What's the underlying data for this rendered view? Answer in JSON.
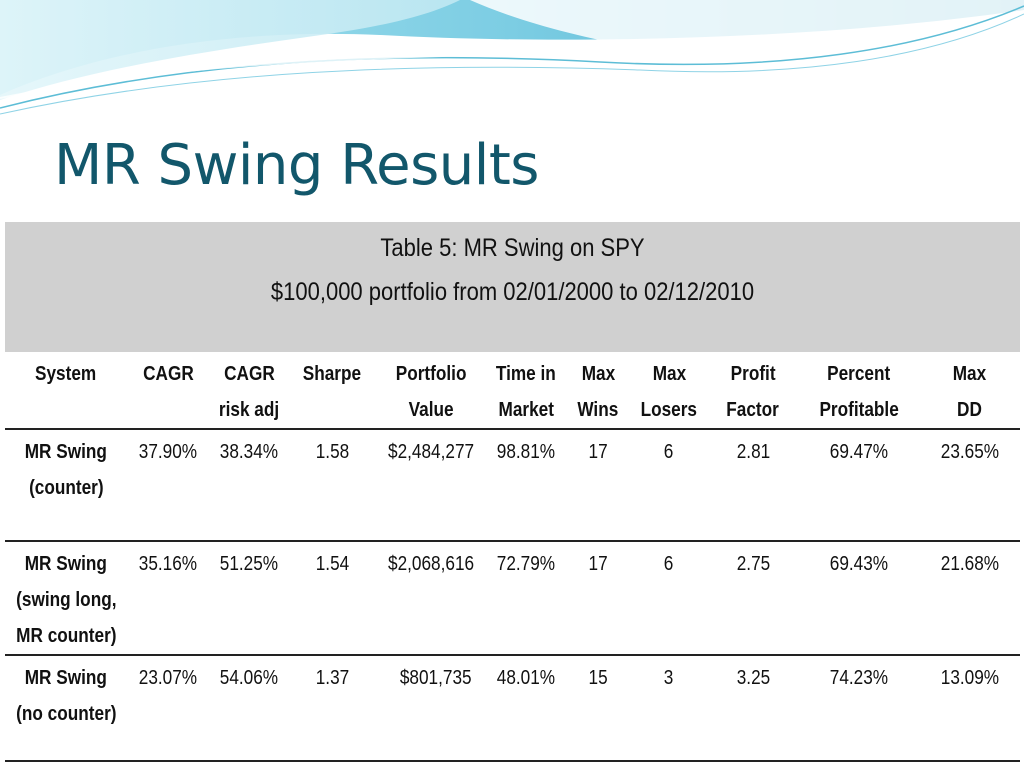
{
  "slide": {
    "title": "MR Swing Results"
  },
  "table": {
    "caption_line1": "Table 5: MR Swing on SPY",
    "caption_line2": "$100,000 portfolio from 02/01/2000 to 02/12/2010",
    "headers": [
      [
        "System"
      ],
      [
        "CAGR"
      ],
      [
        "CAGR",
        "risk adj"
      ],
      [
        "Sharpe"
      ],
      [
        "Portfolio",
        "Value"
      ],
      [
        "Time in",
        "Market"
      ],
      [
        "Max",
        "Wins"
      ],
      [
        "Max",
        "Losers"
      ],
      [
        "Profit",
        "Factor"
      ],
      [
        "Percent",
        "Profitable"
      ],
      [
        "Max",
        "DD"
      ]
    ],
    "rows": [
      {
        "system": [
          "MR Swing",
          "(counter)"
        ],
        "cagr": "37.90%",
        "cagr_risk_adj": "38.34%",
        "sharpe": "1.58",
        "portfolio_value": "$2,484,277",
        "time_in_market": "98.81%",
        "max_wins": "17",
        "max_losers": "6",
        "profit_factor": "2.81",
        "percent_profitable": "69.47%",
        "max_dd": "23.65%"
      },
      {
        "system": [
          "MR Swing",
          "(swing long,",
          "MR counter)"
        ],
        "cagr": "35.16%",
        "cagr_risk_adj": "51.25%",
        "sharpe": "1.54",
        "portfolio_value": "$2,068,616",
        "time_in_market": "72.79%",
        "max_wins": "17",
        "max_losers": "6",
        "profit_factor": "2.75",
        "percent_profitable": "69.43%",
        "max_dd": "21.68%"
      },
      {
        "system": [
          "MR Swing",
          "(no counter)"
        ],
        "cagr": "23.07%",
        "cagr_risk_adj": "54.06%",
        "sharpe": "1.37",
        "portfolio_value": "$801,735",
        "time_in_market": "48.01%",
        "max_wins": "15",
        "max_losers": "3",
        "profit_factor": "3.25",
        "percent_profitable": "74.23%",
        "max_dd": "13.09%"
      }
    ]
  },
  "colors": {
    "title": "#12576b",
    "caption_bg": "#d0d0d0",
    "wave_light": "#cfeef5",
    "wave_mid": "#8fd3e6",
    "wave_dark": "#3aa9c8"
  }
}
